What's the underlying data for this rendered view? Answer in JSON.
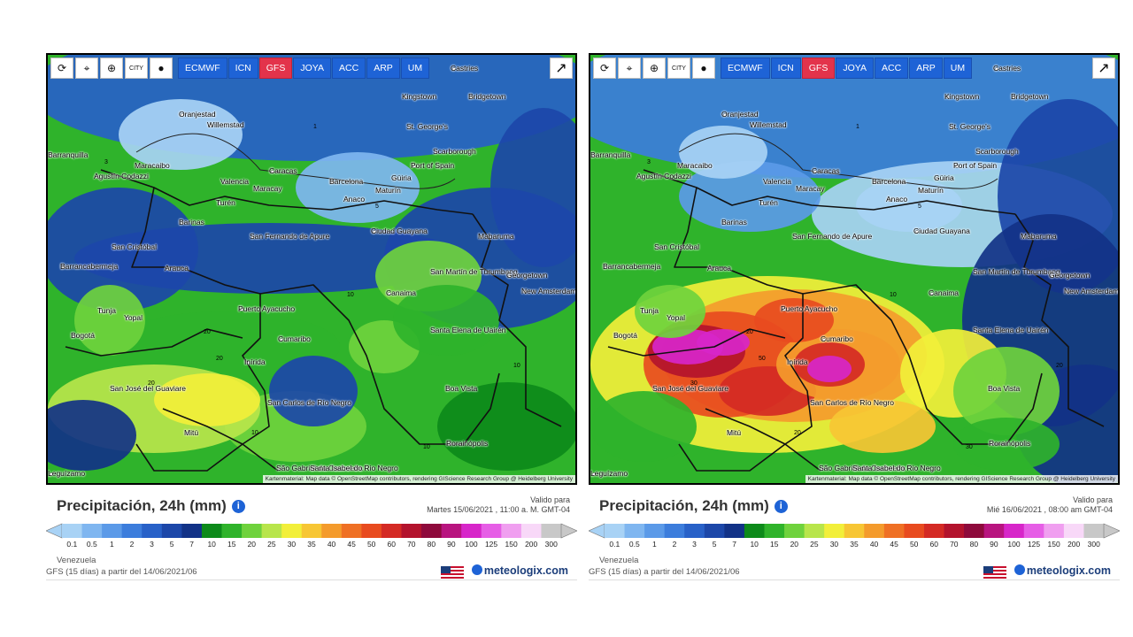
{
  "panels": [
    {
      "toolbar": {
        "icons": [
          "refresh-icon",
          "location-icon",
          "zoom-icon",
          "city-icon",
          "circle-icon"
        ],
        "models": [
          "ECMWF",
          "ICN",
          "GFS",
          "JOYA",
          "ACC",
          "ARP",
          "UM"
        ],
        "active_model": "GFS"
      },
      "places": [
        "Castries",
        "Kingstown",
        "Bridgetown",
        "Oranjestad",
        "Willemstad",
        "St. George's",
        "Scarborough",
        "Port of Spain",
        "Barranquilla",
        "Maracaibo",
        "Caracas",
        "Valencia",
        "Maracay",
        "Barcelona",
        "Güiria",
        "Maturín",
        "Agustín Codazzi",
        "Anaco",
        "Turén",
        "Barinas",
        "Ciudad Guayana",
        "Mabaruma",
        "San Fernando de Apure",
        "San Cristóbal",
        "Barrancabermeja",
        "Arauca",
        "San Martín de Turumbang",
        "Georgetown",
        "New Amsterdam",
        "Canaima",
        "Tunja",
        "Yopal",
        "Puerto Ayacucho",
        "Bogotá",
        "Cumaribo",
        "Santa Elena de Uairén",
        "Inírida",
        "Boa Vista",
        "San José del Guaviare",
        "San Carlos de Río Negro",
        "Mitú",
        "Rorainópolis",
        "São Gabriel da Cachoeira",
        "Santa Isabel do Rio Negro",
        "Leguízamo"
      ],
      "isolines": [
        "1",
        "3",
        "5",
        "10",
        "20",
        "20",
        "20",
        "10",
        "10",
        "10"
      ],
      "attribution": "Kartenmaterial: Map data © OpenStreetMap contributors, rendering GIScience Research Group @ Heidelberg University",
      "title": "Precipitación, 24h (mm)",
      "valid_label": "Valido para",
      "valid_date": "Martes 15/06/2021 , 11:00 a. M. GMT-04",
      "region": "Venezuela",
      "model_text": "GFS (15 días) a partir del 14/06/2021/06",
      "brand": "meteologix.com"
    },
    {
      "toolbar": {
        "icons": [
          "refresh-icon",
          "location-icon",
          "zoom-icon",
          "city-icon",
          "circle-icon"
        ],
        "models": [
          "ECMWF",
          "ICN",
          "GFS",
          "JOYA",
          "ACC",
          "ARP",
          "UM"
        ],
        "active_model": "GFS"
      },
      "places": [
        "Castries",
        "Kingstown",
        "Bridgetown",
        "Oranjestad",
        "Willemstad",
        "St. George's",
        "Scarborough",
        "Port of Spain",
        "Barranquilla",
        "Maracaibo",
        "Caracas",
        "Valencia",
        "Maracay",
        "Barcelona",
        "Güiria",
        "Maturín",
        "Agustín Codazzi",
        "Anaco",
        "Turén",
        "Barinas",
        "Ciudad Guayana",
        "Mabaruma",
        "San Fernando de Apure",
        "San Cristóbal",
        "Barrancabermeja",
        "Arauca",
        "San Martín de Turumbang",
        "Georgetown",
        "New Amsterdam",
        "Canaima",
        "Tunja",
        "Yopal",
        "Puerto Ayacucho",
        "Bogotá",
        "Cumaribo",
        "Santa Elena de Uairén",
        "Inírida",
        "Boa Vista",
        "San José del Guaviare",
        "San Carlos de Río Negro",
        "Mitú",
        "Rorainópolis",
        "São Gabriel da Cachoeira",
        "Santa Isabel do Rio Negro",
        "Leguízamo"
      ],
      "isolines": [
        "1",
        "3",
        "5",
        "10",
        "20",
        "30",
        "50",
        "20",
        "30",
        "20"
      ],
      "attribution": "Kartenmaterial: Map data © OpenStreetMap contributors, rendering GIScience Research Group @ Heidelberg University",
      "title": "Precipitación, 24h (mm)",
      "valid_label": "Valido para",
      "valid_date": "Mié 16/06/2021 , 08:00 am GMT-04",
      "region": "Venezuela",
      "model_text": "GFS (15 días) a partir del 14/06/2021/06",
      "brand": "meteologix.com"
    }
  ],
  "scale": {
    "labels": [
      "0.1",
      "0.5",
      "1",
      "2",
      "3",
      "5",
      "7",
      "10",
      "15",
      "20",
      "25",
      "30",
      "35",
      "40",
      "45",
      "50",
      "60",
      "70",
      "80",
      "90",
      "100",
      "125",
      "150",
      "200",
      "300"
    ],
    "colors": [
      "#a8d2f5",
      "#7fb6f0",
      "#5b9ae8",
      "#3c7ddc",
      "#2861c8",
      "#1c47a9",
      "#123287",
      "#0d8a1a",
      "#2fb32b",
      "#6fd23d",
      "#b8e54b",
      "#f2ef3a",
      "#f7c634",
      "#f49b2c",
      "#ef7024",
      "#e84b1f",
      "#d42a24",
      "#b3132d",
      "#8e0a3c",
      "#b8147f",
      "#d726c9",
      "#e65ee6",
      "#f09ff0",
      "#f8d8f8",
      "#c8c8c8"
    ]
  }
}
